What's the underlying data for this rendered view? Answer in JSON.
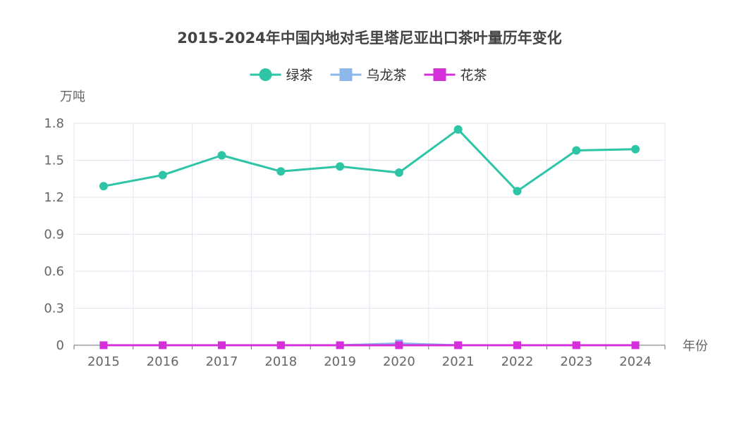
{
  "chart_data": {
    "type": "line",
    "title": "2015-2024年中国内地对毛里塔尼亚出口茶叶量历年变化",
    "xlabel": "年份",
    "ylabel": "万吨",
    "categories": [
      "2015",
      "2016",
      "2017",
      "2018",
      "2019",
      "2020",
      "2021",
      "2022",
      "2023",
      "2024"
    ],
    "yticks": [
      "0",
      "0.3",
      "0.6",
      "0.9",
      "1.2",
      "1.5",
      "1.8"
    ],
    "ylim": [
      0,
      1.8
    ],
    "grid": true,
    "legend_position": "top-center",
    "series": [
      {
        "name": "绿茶",
        "marker": "circle",
        "color": "#2ec4a6",
        "values": [
          1.29,
          1.38,
          1.54,
          1.41,
          1.45,
          1.4,
          1.75,
          1.25,
          1.58,
          1.59
        ]
      },
      {
        "name": "乌龙茶",
        "marker": "square",
        "color": "#8db7e8",
        "values": [
          0,
          0,
          0,
          0,
          0,
          0.015,
          0,
          0,
          0,
          0
        ]
      },
      {
        "name": "花茶",
        "marker": "square",
        "color": "#d42fd8",
        "values": [
          0,
          0,
          0,
          0,
          0,
          0,
          0,
          0,
          0,
          0
        ]
      }
    ]
  }
}
